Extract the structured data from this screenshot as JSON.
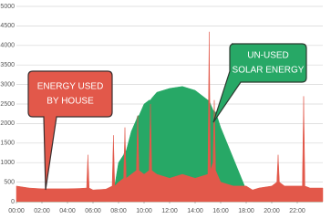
{
  "chart_data": {
    "type": "area",
    "x": [
      0,
      1,
      2,
      3,
      4,
      5,
      5.5,
      5.6,
      5.7,
      6,
      7,
      7.5,
      7.6,
      7.7,
      8,
      8.4,
      8.5,
      8.6,
      9,
      9.4,
      9.5,
      9.6,
      10,
      10.4,
      10.5,
      10.6,
      11,
      12,
      13,
      14,
      15,
      15.1,
      15.2,
      15.4,
      15.5,
      15.6,
      16,
      17,
      18,
      18.5,
      19,
      20,
      20.4,
      20.5,
      20.6,
      21,
      22,
      22.4,
      22.5,
      22.6,
      23,
      24
    ],
    "series": [
      {
        "color": "#27a866",
        "values": [
          0,
          0,
          0,
          0,
          0,
          0,
          0,
          0,
          0,
          0,
          0,
          300,
          300,
          400,
          1000,
          1200,
          1300,
          1300,
          1800,
          2100,
          2200,
          2200,
          2500,
          2600,
          2600,
          2650,
          2800,
          2900,
          2950,
          2850,
          2600,
          2600,
          2500,
          2350,
          2300,
          2300,
          1900,
          1100,
          300,
          0,
          0,
          0,
          0,
          0,
          0,
          0,
          0,
          0,
          0,
          0,
          0,
          0
        ]
      },
      {
        "color": "#e2584a",
        "values": [
          400,
          350,
          330,
          330,
          330,
          340,
          350,
          1200,
          350,
          300,
          320,
          400,
          1700,
          400,
          500,
          600,
          1900,
          600,
          700,
          800,
          2200,
          800,
          700,
          800,
          2500,
          800,
          700,
          600,
          700,
          600,
          700,
          4350,
          800,
          1000,
          2600,
          800,
          500,
          400,
          400,
          300,
          350,
          400,
          500,
          1200,
          500,
          400,
          400,
          400,
          2700,
          400,
          350,
          350
        ]
      }
    ],
    "xlim": [
      0,
      24
    ],
    "xticks": [
      {
        "value": 0,
        "label": "00:00"
      },
      {
        "value": 2,
        "label": "02:00"
      },
      {
        "value": 4,
        "label": "04:00"
      },
      {
        "value": 6,
        "label": "06:00"
      },
      {
        "value": 8,
        "label": "08:00"
      },
      {
        "value": 10,
        "label": "10:00"
      },
      {
        "value": 12,
        "label": "12:00"
      },
      {
        "value": 14,
        "label": "14:00"
      },
      {
        "value": 16,
        "label": "16:00"
      },
      {
        "value": 18,
        "label": "18:00"
      },
      {
        "value": 20,
        "label": "20:00"
      },
      {
        "value": 22,
        "label": "22:00"
      }
    ],
    "ylim": [
      0,
      5000
    ],
    "yticks": [
      0,
      500,
      1000,
      1500,
      2000,
      2500,
      3000,
      3500,
      4000,
      4500,
      5000
    ],
    "grid": true,
    "annotations": [
      {
        "lines": [
          "ENERGY USED",
          "BY HOUSE"
        ]
      },
      {
        "lines": [
          "UN-USED",
          "SOLAR ENERGY"
        ]
      }
    ]
  }
}
